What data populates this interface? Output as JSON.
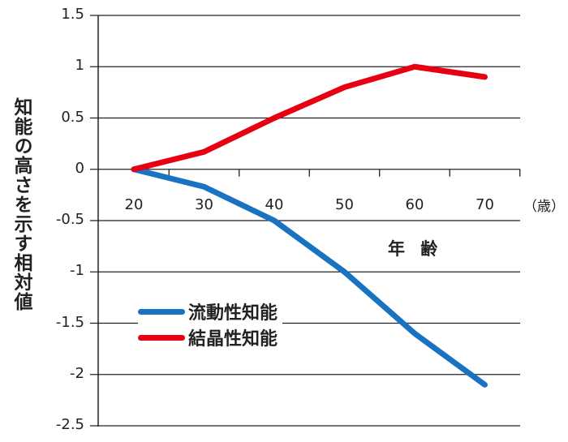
{
  "chart_data": {
    "type": "line",
    "title": "",
    "xlabel": "年 齢",
    "xunit": "（歳）",
    "ylabel": "知能の高さを示す相対値",
    "x": [
      20,
      30,
      40,
      50,
      60,
      70
    ],
    "x_tick_labels": [
      "20",
      "30",
      "40",
      "50",
      "60",
      "70"
    ],
    "y_tick_labels": [
      "1.5",
      "1",
      "0.5",
      "0",
      "-0.5",
      "-1",
      "-1.5",
      "-2",
      "-2.5"
    ],
    "ylim": [
      -2.5,
      1.5
    ],
    "grid": true,
    "legend_position": "lower-left inside",
    "series": [
      {
        "name": "流動性知能",
        "color": "#1a73c0",
        "values": [
          0,
          -0.17,
          -0.5,
          -1.0,
          -1.6,
          -2.1
        ]
      },
      {
        "name": "結晶性知能",
        "color": "#e60012",
        "values": [
          0,
          0.17,
          0.5,
          0.8,
          1.0,
          0.9
        ]
      }
    ]
  },
  "legend": {
    "items": [
      {
        "label": "流動性知能",
        "color": "#1a73c0"
      },
      {
        "label": "結晶性知能",
        "color": "#e60012"
      }
    ]
  }
}
